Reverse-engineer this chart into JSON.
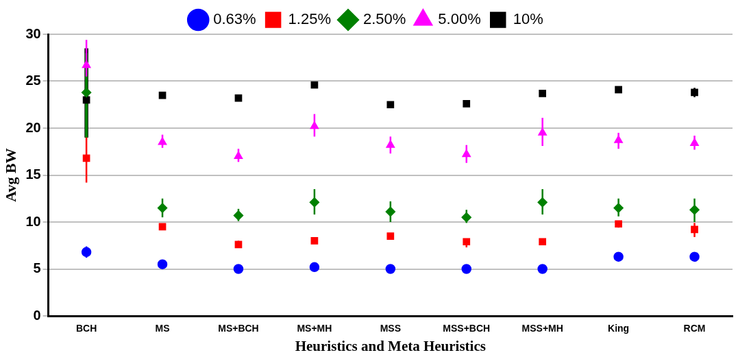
{
  "chart_data": {
    "type": "scatter",
    "xlabel": "Heuristics and Meta Heuristics",
    "ylabel": "Avg BW",
    "categories": [
      "BCH",
      "MS",
      "MS+BCH",
      "MS+MH",
      "MSS",
      "MSS+BCH",
      "MSS+MH",
      "King",
      "RCM"
    ],
    "ylim": [
      0,
      30
    ],
    "yticks": [
      0,
      5,
      10,
      15,
      20,
      25,
      30
    ],
    "grid": "y",
    "legend": "top",
    "series": [
      {
        "name": "0.63%",
        "color": "#0000ff",
        "marker": "circle",
        "values": [
          6.8,
          5.5,
          5.0,
          5.2,
          5.0,
          5.0,
          5.0,
          6.3,
          6.3
        ],
        "errors": [
          [
            6.2,
            7.4
          ],
          null,
          null,
          null,
          null,
          null,
          null,
          null,
          null
        ]
      },
      {
        "name": "1.25%",
        "color": "#ff0000",
        "marker": "square",
        "values": [
          16.8,
          9.5,
          7.6,
          8.0,
          8.5,
          7.9,
          7.9,
          9.8,
          9.2
        ],
        "errors": [
          [
            14.2,
            19.0
          ],
          [
            9.2,
            9.8
          ],
          [
            7.3,
            8.0
          ],
          null,
          [
            8.2,
            8.7
          ],
          [
            7.3,
            8.2
          ],
          null,
          [
            9.4,
            10.1
          ],
          [
            8.4,
            9.9
          ]
        ]
      },
      {
        "name": "2.50%",
        "color": "#008000",
        "marker": "diamond",
        "values": [
          23.8,
          11.5,
          10.7,
          12.1,
          11.1,
          10.5,
          12.1,
          11.5,
          11.3
        ],
        "errors": [
          [
            19.0,
            28.0
          ],
          [
            10.5,
            12.5
          ],
          [
            10.1,
            11.4
          ],
          [
            10.8,
            13.5
          ],
          [
            10.0,
            12.2
          ],
          [
            9.9,
            11.3
          ],
          [
            10.8,
            13.5
          ],
          [
            10.6,
            12.5
          ],
          [
            10.0,
            12.5
          ]
        ]
      },
      {
        "name": "5.00%",
        "color": "#ff00ff",
        "marker": "triangle",
        "values": [
          26.7,
          18.5,
          17.0,
          20.2,
          18.2,
          17.2,
          19.5,
          18.7,
          18.4
        ],
        "errors": [
          [
            25.5,
            29.4
          ],
          [
            17.9,
            19.3
          ],
          [
            16.4,
            17.8
          ],
          [
            19.1,
            21.5
          ],
          [
            17.3,
            19.1
          ],
          [
            16.3,
            18.2
          ],
          [
            18.1,
            21.1
          ],
          [
            17.8,
            19.5
          ],
          [
            17.7,
            19.2
          ]
        ]
      },
      {
        "name": "10%",
        "color": "#000000",
        "marker": "square",
        "values": [
          23.0,
          23.5,
          23.2,
          24.6,
          22.5,
          22.6,
          23.7,
          24.1,
          23.8
        ],
        "errors": [
          [
            19.0,
            28.5
          ],
          null,
          [
            22.9,
            23.5
          ],
          null,
          null,
          null,
          [
            23.5,
            23.9
          ],
          null,
          [
            23.3,
            24.3
          ]
        ]
      }
    ]
  }
}
